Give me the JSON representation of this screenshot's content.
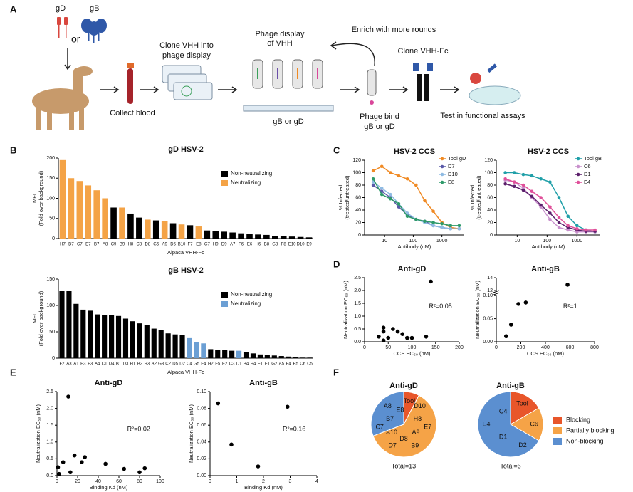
{
  "panel_labels": [
    "A",
    "B",
    "C",
    "D",
    "E",
    "F"
  ],
  "diagram": {
    "antigen_1": "gD",
    "or": "or",
    "antigen_2": "gB",
    "collect": "Collect blood",
    "clone_phage": [
      "Clone VHH into",
      "phage display"
    ],
    "display": [
      "Phage display",
      "of VHH"
    ],
    "enrich": "Enrich with more rounds",
    "target": "gB or gD",
    "bind": [
      "Phage bind",
      "gB or gD"
    ],
    "clone_fc": "Clone VHH-Fc",
    "test": "Test in functional assays"
  },
  "chart_data": [
    {
      "type": "bar",
      "title": "gD HSV-2",
      "ylabel": [
        "MFI",
        "(Fold over background)"
      ],
      "xlabel": "Alpaca VHH-Fc",
      "categories": [
        "H7",
        "D7",
        "C7",
        "E7",
        "B7",
        "A8",
        "C9",
        "B9",
        "H8",
        "C8",
        "D8",
        "G6",
        "A9",
        "D6",
        "B10",
        "F7",
        "E8",
        "G7",
        "H9",
        "D9",
        "A7",
        "F6",
        "E6",
        "H6",
        "B8",
        "G8",
        "F8",
        "E10",
        "D10",
        "E9"
      ],
      "series": [
        {
          "name": "Non-neutralizing",
          "color": "#000000",
          "values": [
            null,
            null,
            null,
            null,
            null,
            null,
            77,
            null,
            62,
            52,
            null,
            45,
            null,
            38,
            null,
            33,
            null,
            20,
            19,
            17,
            15,
            13,
            12,
            10,
            9,
            7,
            6,
            5,
            4,
            3
          ]
        },
        {
          "name": "Neutralizing",
          "color": "#f4a346",
          "values": [
            195,
            150,
            143,
            132,
            120,
            100,
            null,
            77,
            null,
            null,
            47,
            null,
            43,
            null,
            35,
            null,
            30,
            null,
            null,
            null,
            null,
            null,
            null,
            null,
            null,
            null,
            null,
            null,
            null,
            null
          ]
        }
      ],
      "ylim": [
        0,
        200
      ],
      "yticks": [
        0,
        50,
        100,
        150,
        200
      ]
    },
    {
      "type": "bar",
      "title": "gB HSV-2",
      "ylabel": [
        "MFI",
        "(Fold over background)"
      ],
      "xlabel": "Alpaca VHH-Fc",
      "categories": [
        "F2",
        "A3",
        "A1",
        "E3",
        "F3",
        "A4",
        "C1",
        "D4",
        "B1",
        "D3",
        "H1",
        "B2",
        "H3",
        "A2",
        "G3",
        "C2",
        "D5",
        "D2",
        "C4",
        "G5",
        "E4",
        "H2",
        "F5",
        "E2",
        "C3",
        "D1",
        "B4",
        "H4",
        "F1",
        "E1",
        "G2",
        "A5",
        "F4",
        "B5",
        "C6",
        "C5"
      ],
      "series": [
        {
          "name": "Non-neutralizing",
          "color": "#000000",
          "values": [
            128,
            128,
            103,
            92,
            90,
            83,
            82,
            82,
            80,
            75,
            70,
            66,
            63,
            56,
            53,
            47,
            45,
            44,
            null,
            null,
            null,
            17,
            15,
            15,
            14,
            null,
            11,
            9,
            7,
            6,
            5,
            4,
            3,
            2,
            1,
            1
          ]
        },
        {
          "name": "Neutralizing",
          "color": "#6b9fd4",
          "values": [
            null,
            null,
            null,
            null,
            null,
            null,
            null,
            null,
            null,
            null,
            null,
            null,
            null,
            null,
            null,
            null,
            null,
            null,
            38,
            30,
            28,
            null,
            null,
            null,
            null,
            14,
            null,
            null,
            null,
            null,
            null,
            null,
            null,
            null,
            null,
            null
          ]
        }
      ],
      "ylim": [
        0,
        150
      ],
      "yticks": [
        0,
        50,
        100,
        150
      ]
    },
    {
      "type": "line",
      "title": "HSV-2 CCS",
      "ylabel": [
        "% Infected",
        "(treated/untreated)"
      ],
      "xlabel": "Antibody (nM)",
      "log_x": true,
      "x": [
        4,
        8,
        16,
        31,
        62,
        125,
        250,
        500,
        1000,
        2000,
        4000
      ],
      "series": [
        {
          "name": "Tool gD",
          "color": "#f08a24",
          "values": [
            103,
            110,
            100,
            95,
            90,
            80,
            55,
            38,
            20,
            12,
            10
          ]
        },
        {
          "name": "D7",
          "color": "#5a5aa8",
          "values": [
            80,
            70,
            60,
            45,
            32,
            25,
            22,
            15,
            12,
            10,
            10
          ]
        },
        {
          "name": "D10",
          "color": "#8fbbe3",
          "values": [
            85,
            75,
            65,
            50,
            35,
            25,
            20,
            15,
            12,
            10,
            10
          ]
        },
        {
          "name": "E8",
          "color": "#2e9a6a",
          "values": [
            90,
            65,
            58,
            50,
            30,
            25,
            22,
            20,
            18,
            15,
            15
          ]
        }
      ],
      "xlim": [
        2,
        6000
      ],
      "xticks": [
        10,
        100,
        1000
      ],
      "ylim": [
        0,
        120
      ],
      "yticks": [
        0,
        20,
        40,
        60,
        80,
        100,
        120
      ]
    },
    {
      "type": "line",
      "title": "HSV-2 CCS",
      "ylabel": [
        "% Infected",
        "(treated/untreated)"
      ],
      "xlabel": "Antibody (nM)",
      "log_x": true,
      "x": [
        4,
        8,
        16,
        31,
        62,
        125,
        250,
        500,
        1000,
        2000,
        4000
      ],
      "series": [
        {
          "name": "Tool gB",
          "color": "#1f9fa8",
          "values": [
            100,
            100,
            97,
            95,
            90,
            85,
            60,
            30,
            15,
            8,
            5
          ]
        },
        {
          "name": "C6",
          "color": "#c890cc",
          "values": [
            88,
            85,
            75,
            60,
            45,
            25,
            12,
            8,
            5,
            5,
            5
          ]
        },
        {
          "name": "D1",
          "color": "#5b1f6b",
          "values": [
            82,
            78,
            72,
            62,
            48,
            35,
            20,
            12,
            8,
            6,
            6
          ]
        },
        {
          "name": "E4",
          "color": "#e0509a",
          "values": [
            90,
            85,
            80,
            70,
            60,
            45,
            28,
            15,
            10,
            8,
            8
          ]
        }
      ],
      "xlim": [
        2,
        6000
      ],
      "xticks": [
        10,
        100,
        1000
      ],
      "ylim": [
        0,
        120
      ],
      "yticks": [
        0,
        20,
        40,
        60,
        80,
        100,
        120
      ]
    },
    {
      "type": "scatter",
      "title": "Anti-gD",
      "ylabel": [
        "Neutralization EC₅₀ (nM)"
      ],
      "xlabel": "CCS EC₅₀ (nM)",
      "annotation": "R²=0.05",
      "color": "#000000",
      "x": [
        30,
        40,
        40,
        40,
        50,
        60,
        70,
        80,
        90,
        100,
        130,
        140
      ],
      "values": [
        0.2,
        0.05,
        0.4,
        0.55,
        0.15,
        0.5,
        0.4,
        0.3,
        0.15,
        0.15,
        0.2,
        2.35
      ],
      "xlim": [
        0,
        200
      ],
      "xticks": [
        0,
        50,
        100,
        150,
        200
      ],
      "ylim": [
        0,
        2.5
      ],
      "yticks": [
        {
          "value": 0,
          "label": "0.0"
        },
        {
          "value": 0.5,
          "label": "0.5"
        },
        {
          "value": 1,
          "label": "1.0"
        },
        {
          "value": 1.5,
          "label": "1.5"
        },
        {
          "value": 2,
          "label": "2.0"
        },
        {
          "value": 2.5,
          "label": "2.5"
        }
      ]
    },
    {
      "type": "scatter",
      "title": "Anti-gB",
      "ylabel": [
        "Neutralization EC₅₀ (nM)"
      ],
      "xlabel": "CCS EC₅₀ (nM)",
      "annotation": "R²=1",
      "color": "#000000",
      "x": [
        80,
        120,
        180,
        240,
        580
      ],
      "values": [
        0.012,
        0.037,
        0.082,
        0.085,
        12.9
      ],
      "xlim": [
        0,
        800
      ],
      "xticks": [
        0,
        200,
        400,
        600,
        800
      ],
      "ylim": [
        0,
        14
      ],
      "ybreak": [
        0.1,
        12
      ],
      "yticks": [
        {
          "value": 0,
          "label": "0.00"
        },
        {
          "value": 0.05,
          "label": "0.05"
        },
        {
          "value": 0.1,
          "label": "0.10"
        },
        12,
        14
      ]
    },
    {
      "type": "scatter",
      "title": "Anti-gD",
      "ylabel": [
        "Neutralization EC₅₀ (nM)"
      ],
      "xlabel": "Binding Kd (nM)",
      "annotation": "R²=0.02",
      "color": "#000000",
      "x": [
        1,
        2,
        6,
        11,
        13,
        17,
        24,
        27,
        47,
        65,
        80,
        85
      ],
      "values": [
        0.25,
        0.05,
        0.4,
        2.35,
        0.1,
        0.6,
        0.4,
        0.55,
        0.35,
        0.2,
        0.1,
        0.22
      ],
      "xlim": [
        0,
        100
      ],
      "xticks": [
        0,
        20,
        40,
        60,
        80,
        100
      ],
      "ylim": [
        0,
        2.5
      ],
      "yticks": [
        {
          "value": 0,
          "label": "0.0"
        },
        {
          "value": 0.5,
          "label": "0.5"
        },
        {
          "value": 1,
          "label": "1.0"
        },
        {
          "value": 1.5,
          "label": "1.5"
        },
        {
          "value": 2,
          "label": "2.0"
        },
        {
          "value": 2.5,
          "label": "2.5"
        }
      ]
    },
    {
      "type": "scatter",
      "title": "Anti-gB",
      "ylabel": [
        "Neutralization EC₅₀ (nM)"
      ],
      "xlabel": "Binding Kd (nM)",
      "annotation": "R²=0.16",
      "color": "#000000",
      "x": [
        0.3,
        0.8,
        1.8,
        2.9
      ],
      "values": [
        0.086,
        0.037,
        0.011,
        0.082
      ],
      "xlim": [
        0,
        4
      ],
      "xticks": [
        0,
        1,
        2,
        3,
        4
      ],
      "ylim": [
        0,
        0.1
      ],
      "yticks": [
        {
          "value": 0,
          "label": "0.00"
        },
        {
          "value": 0.02,
          "label": "0.02"
        },
        {
          "value": 0.04,
          "label": "0.04"
        },
        {
          "value": 0.06,
          "label": "0.06"
        },
        {
          "value": 0.08,
          "label": "0.08"
        },
        {
          "value": 0.1,
          "label": "0.10"
        }
      ]
    },
    {
      "type": "pie",
      "title": "Anti-gD",
      "total": "Total=13",
      "values": [
        1,
        8,
        4
      ],
      "colors": [
        "#e8562a",
        "#f5a347",
        "#5b8fd0"
      ],
      "slice_labels": [
        [
          "Tool"
        ],
        [
          "D10",
          "H8",
          "E7",
          "A9",
          "B9",
          "D8",
          "D7",
          "A10"
        ],
        [
          "C7",
          "B7",
          "A8",
          "E8"
        ]
      ]
    },
    {
      "type": "pie",
      "title": "Anti-gB",
      "total": "Total=6",
      "values": [
        1,
        1,
        4
      ],
      "colors": [
        "#e8562a",
        "#f5a347",
        "#5b8fd0"
      ],
      "categories": [
        "Blocking",
        "Partially blocking",
        "Non-blocking"
      ],
      "slice_labels": [
        [
          "Tool"
        ],
        [
          "C6"
        ],
        [
          "D2",
          "D1",
          "E4",
          "C4"
        ]
      ]
    }
  ]
}
